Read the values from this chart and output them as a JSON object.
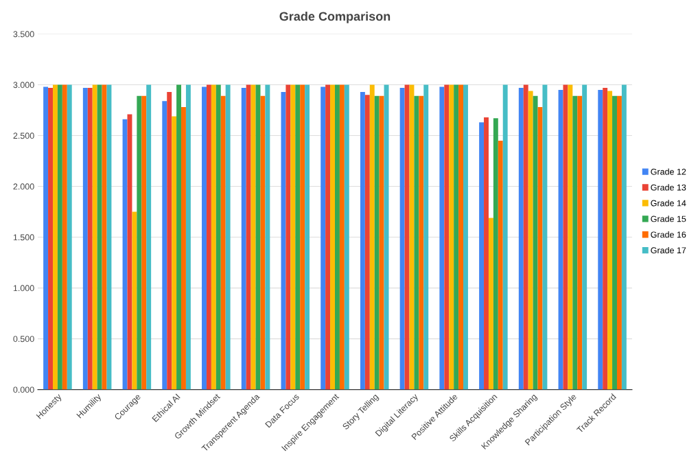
{
  "chart_data": {
    "type": "bar",
    "title": "Grade Comparison",
    "categories": [
      "Honesty",
      "Humility",
      "Courage",
      "Ethical AI",
      "Growth Mindset",
      "Transperent Agenda",
      "Data Focus",
      "Inspire Engagement",
      "Story Telling",
      "Digital Literacy",
      "Positive Attitude",
      "Skills Acquisition",
      "Knowledge Sharing",
      "Participation Style",
      "Track Record"
    ],
    "series": [
      {
        "name": "Grade 12",
        "color": "#4285f4",
        "values": [
          2.98,
          2.97,
          2.66,
          2.84,
          2.98,
          2.97,
          2.93,
          2.98,
          2.93,
          2.97,
          2.98,
          2.63,
          2.97,
          2.95,
          2.95
        ]
      },
      {
        "name": "Grade 13",
        "color": "#ea4335",
        "values": [
          2.97,
          2.97,
          2.71,
          2.93,
          3.0,
          3.0,
          3.0,
          3.0,
          2.9,
          3.0,
          3.0,
          2.68,
          3.0,
          3.0,
          2.97
        ]
      },
      {
        "name": "Grade 14",
        "color": "#fbbc04",
        "values": [
          3.0,
          3.0,
          1.75,
          2.69,
          3.0,
          3.0,
          3.0,
          3.0,
          3.0,
          3.0,
          3.0,
          1.69,
          2.94,
          3.0,
          2.94
        ]
      },
      {
        "name": "Grade 15",
        "color": "#34a853",
        "values": [
          3.0,
          3.0,
          2.89,
          3.0,
          3.0,
          3.0,
          3.0,
          3.0,
          2.89,
          2.89,
          3.0,
          2.67,
          2.89,
          2.89,
          2.89
        ]
      },
      {
        "name": "Grade 16",
        "color": "#ff6d01",
        "values": [
          3.0,
          3.0,
          2.89,
          2.78,
          2.89,
          2.89,
          3.0,
          3.0,
          2.89,
          2.89,
          3.0,
          2.45,
          2.78,
          2.89,
          2.89
        ]
      },
      {
        "name": "Grade 17",
        "color": "#46bdc6",
        "values": [
          3.0,
          3.0,
          3.0,
          3.0,
          3.0,
          3.0,
          3.0,
          3.0,
          3.0,
          3.0,
          3.0,
          3.0,
          3.0,
          3.0,
          3.0
        ]
      }
    ],
    "ylim": [
      0,
      3.5
    ],
    "yticks": [
      {
        "value": 0,
        "label": "0.000"
      },
      {
        "value": 0.5,
        "label": "0.500"
      },
      {
        "value": 1,
        "label": "1.000"
      },
      {
        "value": 1.5,
        "label": "1.500"
      },
      {
        "value": 2,
        "label": "2.000"
      },
      {
        "value": 2.5,
        "label": "2.500"
      },
      {
        "value": 3,
        "label": "3.000"
      },
      {
        "value": 3.5,
        "label": "3.500"
      }
    ],
    "grid": "y",
    "legend": "right"
  }
}
